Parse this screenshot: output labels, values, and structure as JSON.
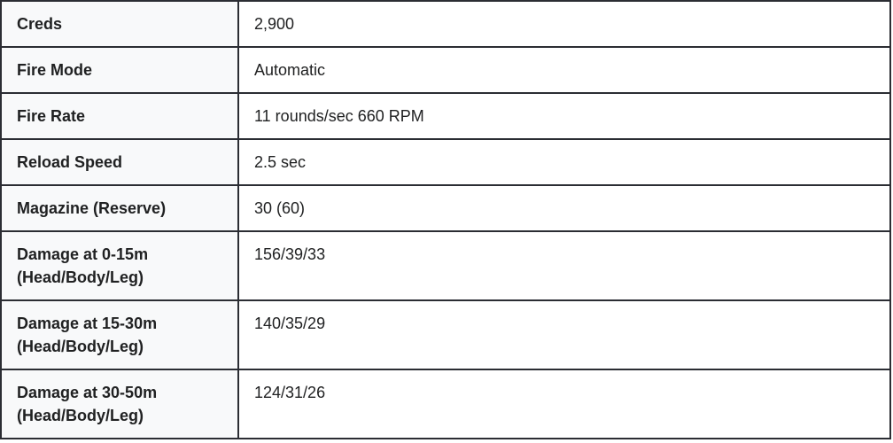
{
  "table": {
    "rows": [
      {
        "label": "Creds",
        "value": "2,900"
      },
      {
        "label": "Fire Mode",
        "value": "Automatic"
      },
      {
        "label": "Fire Rate",
        "value": "11 rounds/sec 660 RPM"
      },
      {
        "label": "Reload Speed",
        "value": "2.5 sec"
      },
      {
        "label": "Magazine (Reserve)",
        "value": "30 (60)"
      },
      {
        "label": "Damage at 0-15m (Head/Body/Leg)",
        "value": "156/39/33"
      },
      {
        "label": "Damage at 15-30m (Head/Body/Leg)",
        "value": "140/35/29"
      },
      {
        "label": "Damage at 30-50m (Head/Body/Leg)",
        "value": "124/31/26"
      }
    ]
  },
  "colors": {
    "border": "#2b2d33",
    "label_background": "#f8f9fa",
    "value_background": "#ffffff",
    "text": "#202122"
  }
}
